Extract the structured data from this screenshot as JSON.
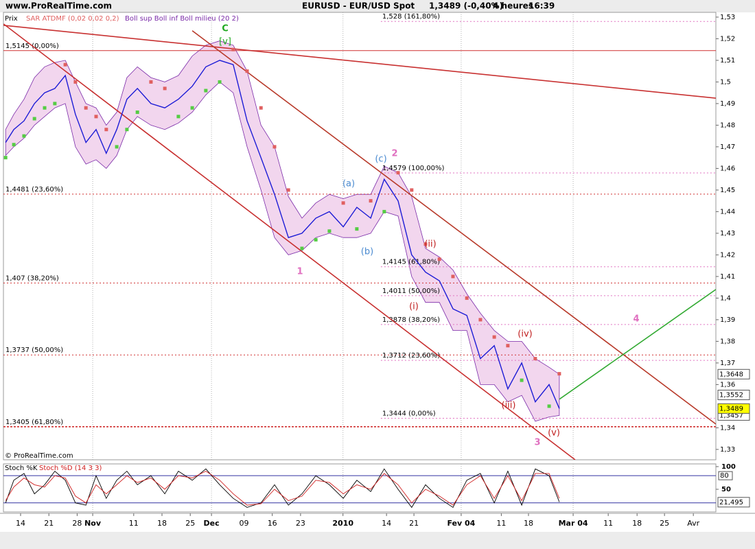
{
  "header": {
    "site": "www.ProRealTime.com",
    "instrument": "EURUSD - EUR/USD Spot",
    "quote": "1,3489 (-0,40%)",
    "timeframe": "4 heures",
    "time": "16:39"
  },
  "chart_data": [
    {
      "type": "line",
      "copyright": "© ProRealTime.com",
      "xlim": [
        -0.607,
        24.587
      ],
      "ylim": [
        1.3252,
        1.5322
      ],
      "xticks": [
        {
          "value": 0,
          "label": "14"
        },
        {
          "value": 1,
          "label": "21"
        },
        {
          "value": 2,
          "label": "28"
        },
        {
          "value": 2.55,
          "label": "Nov",
          "grid": true
        },
        {
          "value": 4,
          "label": "11"
        },
        {
          "value": 5,
          "label": "18"
        },
        {
          "value": 6,
          "label": "25"
        },
        {
          "value": 6.75,
          "label": "Dec",
          "grid": true
        },
        {
          "value": 7.9,
          "label": "09"
        },
        {
          "value": 8.9,
          "label": "16"
        },
        {
          "value": 9.9,
          "label": "23"
        },
        {
          "value": 11.4,
          "label": "2010",
          "grid": true
        },
        {
          "value": 12.94,
          "label": "14"
        },
        {
          "value": 13.91,
          "label": "21"
        },
        {
          "value": 15.58,
          "label": "Fev 04",
          "grid": true
        },
        {
          "value": 17.0,
          "label": "11"
        },
        {
          "value": 17.96,
          "label": "18"
        },
        {
          "value": 19.54,
          "label": "Mar 04",
          "grid": true
        },
        {
          "value": 20.78,
          "label": "11"
        },
        {
          "value": 21.8,
          "label": "18"
        },
        {
          "value": 22.77,
          "label": "25"
        },
        {
          "value": 23.79,
          "label": "Avr"
        }
      ],
      "yticks": [
        {
          "value": 1.53,
          "label": "1,53"
        },
        {
          "value": 1.52,
          "label": "1,52"
        },
        {
          "value": 1.51,
          "label": "1,51"
        },
        {
          "value": 1.5,
          "label": "1,5"
        },
        {
          "value": 1.49,
          "label": "1,49"
        },
        {
          "value": 1.48,
          "label": "1,48"
        },
        {
          "value": 1.47,
          "label": "1,47"
        },
        {
          "value": 1.46,
          "label": "1,46"
        },
        {
          "value": 1.45,
          "label": "1,45"
        },
        {
          "value": 1.44,
          "label": "1,44"
        },
        {
          "value": 1.43,
          "label": "1,43"
        },
        {
          "value": 1.42,
          "label": "1,42"
        },
        {
          "value": 1.41,
          "label": "1,41"
        },
        {
          "value": 1.4,
          "label": "1,4"
        },
        {
          "value": 1.39,
          "label": "1,39"
        },
        {
          "value": 1.38,
          "label": "1,38"
        },
        {
          "value": 1.37,
          "label": "1,37"
        },
        {
          "value": 1.36,
          "label": "1,36"
        },
        {
          "value": 1.34,
          "label": "1,34"
        },
        {
          "value": 1.33,
          "label": "1,33"
        }
      ],
      "x": [
        -0.53,
        -0.24,
        0.12,
        0.49,
        0.85,
        1.21,
        1.58,
        1.94,
        2.31,
        2.67,
        3.03,
        3.4,
        3.76,
        4.13,
        4.61,
        5.1,
        5.58,
        6.07,
        6.55,
        7.04,
        7.52,
        8.01,
        8.5,
        8.98,
        9.47,
        9.95,
        10.44,
        10.92,
        11.41,
        11.89,
        12.38,
        12.86,
        13.35,
        13.83,
        14.32,
        14.81,
        15.29,
        15.78,
        16.26,
        16.75,
        17.23,
        17.72,
        18.2,
        18.69,
        19.05
      ],
      "series": [
        {
          "name": "Prix",
          "color": "#1c1cd6",
          "values": [
            1.472,
            1.478,
            1.482,
            1.49,
            1.495,
            1.497,
            1.503,
            1.485,
            1.472,
            1.478,
            1.467,
            1.478,
            1.492,
            1.497,
            1.49,
            1.488,
            1.492,
            1.498,
            1.507,
            1.51,
            1.508,
            1.482,
            1.465,
            1.448,
            1.428,
            1.43,
            1.437,
            1.44,
            1.433,
            1.442,
            1.437,
            1.455,
            1.445,
            1.42,
            1.412,
            1.408,
            1.395,
            1.392,
            1.372,
            1.378,
            1.358,
            1.37,
            1.352,
            1.36,
            1.3489
          ]
        }
      ],
      "sar": {
        "name": "SAR ATDMF (0,02 0,02 0,2)",
        "color": "#e06060",
        "color_below": "#55cc44",
        "values": [
          1.465,
          1.471,
          1.475,
          1.483,
          1.488,
          1.49,
          1.508,
          1.5,
          1.488,
          1.484,
          1.478,
          1.47,
          1.478,
          1.486,
          1.5,
          1.497,
          1.484,
          1.488,
          1.496,
          1.5,
          1.515,
          1.505,
          1.488,
          1.47,
          1.45,
          1.423,
          1.427,
          1.431,
          1.444,
          1.432,
          1.445,
          1.44,
          1.458,
          1.45,
          1.425,
          1.418,
          1.41,
          1.4,
          1.39,
          1.382,
          1.378,
          1.362,
          1.372,
          1.35,
          1.365
        ]
      },
      "bands": {
        "name": "Boll sup Boll inf Boll milieu (20 2)",
        "color": "#7a2aa8",
        "fill": "#f2d6ee",
        "upper": [
          1.478,
          1.485,
          1.492,
          1.502,
          1.507,
          1.509,
          1.51,
          1.5,
          1.49,
          1.488,
          1.48,
          1.486,
          1.502,
          1.507,
          1.502,
          1.5,
          1.503,
          1.512,
          1.517,
          1.519,
          1.517,
          1.505,
          1.48,
          1.47,
          1.447,
          1.437,
          1.444,
          1.448,
          1.446,
          1.448,
          1.448,
          1.461,
          1.458,
          1.447,
          1.423,
          1.419,
          1.413,
          1.402,
          1.393,
          1.385,
          1.38,
          1.38,
          1.372,
          1.368,
          1.3648
        ],
        "lower": [
          1.466,
          1.47,
          1.474,
          1.48,
          1.484,
          1.488,
          1.49,
          1.47,
          1.462,
          1.464,
          1.46,
          1.466,
          1.478,
          1.484,
          1.48,
          1.478,
          1.481,
          1.486,
          1.494,
          1.5,
          1.495,
          1.47,
          1.45,
          1.428,
          1.42,
          1.422,
          1.428,
          1.43,
          1.428,
          1.428,
          1.43,
          1.44,
          1.438,
          1.41,
          1.398,
          1.398,
          1.385,
          1.385,
          1.36,
          1.36,
          1.352,
          1.355,
          1.343,
          1.345,
          1.3457
        ]
      },
      "last_values": [
        {
          "value": 1.3648,
          "label": "1,3648",
          "fill": "#ffffff"
        },
        {
          "value": 1.3552,
          "label": "1,3552",
          "fill": "#ffffff"
        },
        {
          "value": 1.3457,
          "label": "1,3457",
          "fill": "#ffffff"
        },
        {
          "value": 1.3489,
          "label": "1,3489",
          "fill": "#ffff00"
        }
      ],
      "fib_left": {
        "color": "#d03030",
        "levels": [
          {
            "value": 1.5145,
            "label": "1,5145 (0,00%)"
          },
          {
            "value": 1.4481,
            "label": "1,4481 (23,60%)"
          },
          {
            "value": 1.407,
            "label": "1,407 (38,20%)"
          },
          {
            "value": 1.3737,
            "label": "1,3737 (50,00%)"
          },
          {
            "value": 1.3405,
            "label": "1,3405 (61,80%)"
          }
        ]
      },
      "fib_right": {
        "color": "#e070c0",
        "start_x": 12.74,
        "levels": [
          {
            "value": 1.528,
            "label": "1,528 (161,80%)"
          },
          {
            "value": 1.4579,
            "label": "1,4579 (100,00%)"
          },
          {
            "value": 1.4145,
            "label": "1,4145 (61,80%)"
          },
          {
            "value": 1.4011,
            "label": "1,4011 (50,00%)"
          },
          {
            "value": 1.3878,
            "label": "1,3878 (38,20%)"
          },
          {
            "value": 1.3712,
            "label": "1,3712 (23,60%)"
          },
          {
            "value": 1.3444,
            "label": "1,3444 (0,00%)"
          }
        ]
      },
      "trendlines": [
        {
          "x": [
            -0.6,
            24.587
          ],
          "y": [
            1.5262,
            1.4925
          ],
          "color": "#c83030"
        },
        {
          "x": [
            6.07,
            24.587
          ],
          "y": [
            1.5237,
            1.3417
          ],
          "color": "#b83a2a"
        },
        {
          "x": [
            -0.6,
            19.61
          ],
          "y": [
            1.5268,
            1.3252
          ],
          "color": "#c83030"
        },
        {
          "x": [
            19.05,
            24.587
          ],
          "y": [
            1.3532,
            1.404
          ],
          "color": "#33aa33"
        }
      ],
      "annotations": [
        {
          "text": "C",
          "color": "#22aa22"
        },
        {
          "text": "[v]",
          "color": "#22aa22"
        },
        {
          "text": "2",
          "color": "#e070c0"
        },
        {
          "text": "(c)",
          "color": "#4a8ad0"
        },
        {
          "text": "(a)",
          "color": "#4a8ad0"
        },
        {
          "text": "(b)",
          "color": "#4a8ad0"
        },
        {
          "text": "1",
          "color": "#e070c0"
        },
        {
          "text": "(ii)",
          "color": "#c02020"
        },
        {
          "text": "(i)",
          "color": "#c02020"
        },
        {
          "text": "(iii)",
          "color": "#c02020"
        },
        {
          "text": "(iv)",
          "color": "#c02020"
        },
        {
          "text": "(v)",
          "color": "#c02020"
        },
        {
          "text": "3",
          "color": "#e070c0"
        },
        {
          "text": "4",
          "color": "#e070c0"
        }
      ]
    },
    {
      "type": "line",
      "ylim": [
        0,
        106
      ],
      "yticks": [
        100,
        50
      ],
      "upper_level": 80,
      "lower_level": 20,
      "last_value": {
        "value": 21.495,
        "label": "21,495"
      },
      "x": [
        -0.53,
        -0.24,
        0.12,
        0.49,
        0.85,
        1.21,
        1.58,
        1.94,
        2.31,
        2.67,
        3.03,
        3.4,
        3.76,
        4.13,
        4.61,
        5.1,
        5.58,
        6.07,
        6.55,
        7.04,
        7.52,
        8.01,
        8.5,
        8.98,
        9.47,
        9.95,
        10.44,
        10.92,
        11.41,
        11.89,
        12.38,
        12.86,
        13.35,
        13.83,
        14.32,
        14.81,
        15.29,
        15.78,
        16.26,
        16.75,
        17.23,
        17.72,
        18.2,
        18.69,
        19.05
      ],
      "series": [
        {
          "name": "Stoch %K",
          "color": "#000000",
          "values": [
            20,
            70,
            85,
            40,
            60,
            90,
            70,
            20,
            15,
            80,
            30,
            70,
            90,
            60,
            80,
            40,
            90,
            70,
            95,
            60,
            30,
            10,
            20,
            60,
            15,
            40,
            80,
            60,
            30,
            70,
            45,
            95,
            50,
            10,
            60,
            30,
            10,
            70,
            85,
            20,
            90,
            15,
            95,
            80,
            22
          ]
        },
        {
          "name": "Stoch %D (14 3 3)",
          "color": "#d02020",
          "values": [
            25,
            55,
            75,
            60,
            55,
            80,
            75,
            35,
            20,
            60,
            40,
            60,
            80,
            65,
            75,
            50,
            80,
            75,
            90,
            70,
            40,
            15,
            18,
            50,
            25,
            35,
            70,
            65,
            40,
            60,
            50,
            85,
            60,
            20,
            50,
            35,
            15,
            60,
            80,
            30,
            80,
            25,
            85,
            85,
            30
          ]
        }
      ]
    }
  ]
}
